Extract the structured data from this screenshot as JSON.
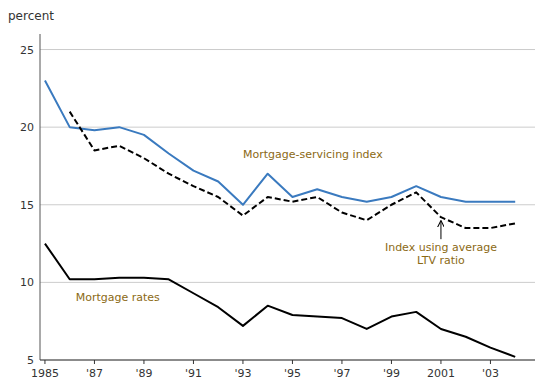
{
  "chart_data": {
    "type": "line",
    "y_label": "percent",
    "x": [
      1985,
      1986,
      1987,
      1988,
      1989,
      1990,
      1991,
      1992,
      1993,
      1994,
      1995,
      1996,
      1997,
      1998,
      1999,
      2000,
      2001,
      2002,
      2003,
      2004
    ],
    "series": [
      {
        "color": "#3a7abf",
        "line_style": "solid",
        "values": [
          23.0,
          20.0,
          19.8,
          20.0,
          19.5,
          18.3,
          17.2,
          16.5,
          15.0,
          17.0,
          15.5,
          16.0,
          15.5,
          15.2,
          15.5,
          16.2,
          15.5,
          15.2,
          15.2,
          15.2
        ]
      },
      {
        "color": "#000000",
        "line_style": "dashed",
        "values": [
          null,
          21.0,
          18.5,
          18.8,
          18.0,
          17.0,
          16.2,
          15.5,
          14.3,
          15.5,
          15.2,
          15.5,
          14.5,
          14.0,
          15.0,
          15.8,
          14.2,
          13.5,
          13.5,
          13.8
        ]
      },
      {
        "color": "#000000",
        "line_style": "solid",
        "values": [
          12.5,
          10.2,
          10.2,
          10.3,
          10.3,
          10.2,
          9.3,
          8.4,
          7.2,
          8.5,
          7.9,
          7.8,
          7.7,
          7.0,
          7.8,
          8.1,
          7.0,
          6.5,
          5.8,
          5.2
        ]
      }
    ],
    "annotations": [
      {
        "text": "Mortgage-servicing index",
        "color": "#8B6914"
      },
      {
        "text": "Index using average\nLTV ratio",
        "color": "#8B6914"
      },
      {
        "text": "Mortgage rates",
        "color": "#8B6914"
      }
    ],
    "xlim": [
      1984.8,
      2004.8
    ],
    "xticks": [
      1985,
      {
        "value": 1987,
        "label": "'87"
      },
      {
        "value": 1989,
        "label": "'89"
      },
      {
        "value": 1991,
        "label": "'91"
      },
      {
        "value": 1993,
        "label": "'93"
      },
      {
        "value": 1995,
        "label": "'95"
      },
      {
        "value": 1997,
        "label": "'97"
      },
      {
        "value": 1999,
        "label": "'99"
      },
      2001,
      {
        "value": 2003,
        "label": "'03"
      }
    ],
    "ylim": [
      5,
      26
    ],
    "yticks": [
      5,
      10,
      15,
      20,
      25
    ],
    "grid": true
  }
}
